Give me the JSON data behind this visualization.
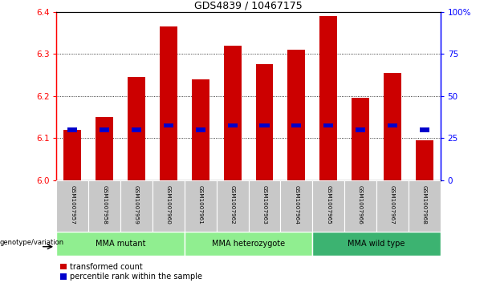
{
  "title": "GDS4839 / 10467175",
  "samples": [
    "GSM1007957",
    "GSM1007958",
    "GSM1007959",
    "GSM1007960",
    "GSM1007961",
    "GSM1007962",
    "GSM1007963",
    "GSM1007964",
    "GSM1007965",
    "GSM1007966",
    "GSM1007967",
    "GSM1007968"
  ],
  "transformed_count": [
    6.12,
    6.15,
    6.245,
    6.365,
    6.24,
    6.32,
    6.275,
    6.31,
    6.39,
    6.195,
    6.255,
    6.095
  ],
  "percentile_values": [
    6.12,
    6.12,
    6.12,
    6.13,
    6.12,
    6.13,
    6.13,
    6.13,
    6.13,
    6.12,
    6.13,
    6.12
  ],
  "ylim_left": [
    6.0,
    6.4
  ],
  "ylim_right": [
    0,
    100
  ],
  "yticks_left": [
    6.0,
    6.1,
    6.2,
    6.3,
    6.4
  ],
  "yticks_right": [
    0,
    25,
    50,
    75,
    100
  ],
  "ytick_labels_right": [
    "0",
    "25",
    "50",
    "75",
    "100%"
  ],
  "bar_color": "#CC0000",
  "percentile_color": "#0000CC",
  "background_color": "#ffffff",
  "label_row_bg": "#C8C8C8",
  "group_row_bg_light": "#90EE90",
  "group_row_bg_dark": "#3CB371",
  "legend_red_label": "transformed count",
  "legend_blue_label": "percentile rank within the sample",
  "genotype_label": "genotype/variation",
  "base_value": 6.0,
  "groups_info": [
    {
      "label": "MMA mutant",
      "start": 0,
      "end": 3,
      "light": true
    },
    {
      "label": "MMA heterozygote",
      "start": 4,
      "end": 7,
      "light": true
    },
    {
      "label": "MMA wild type",
      "start": 8,
      "end": 11,
      "light": false
    }
  ]
}
